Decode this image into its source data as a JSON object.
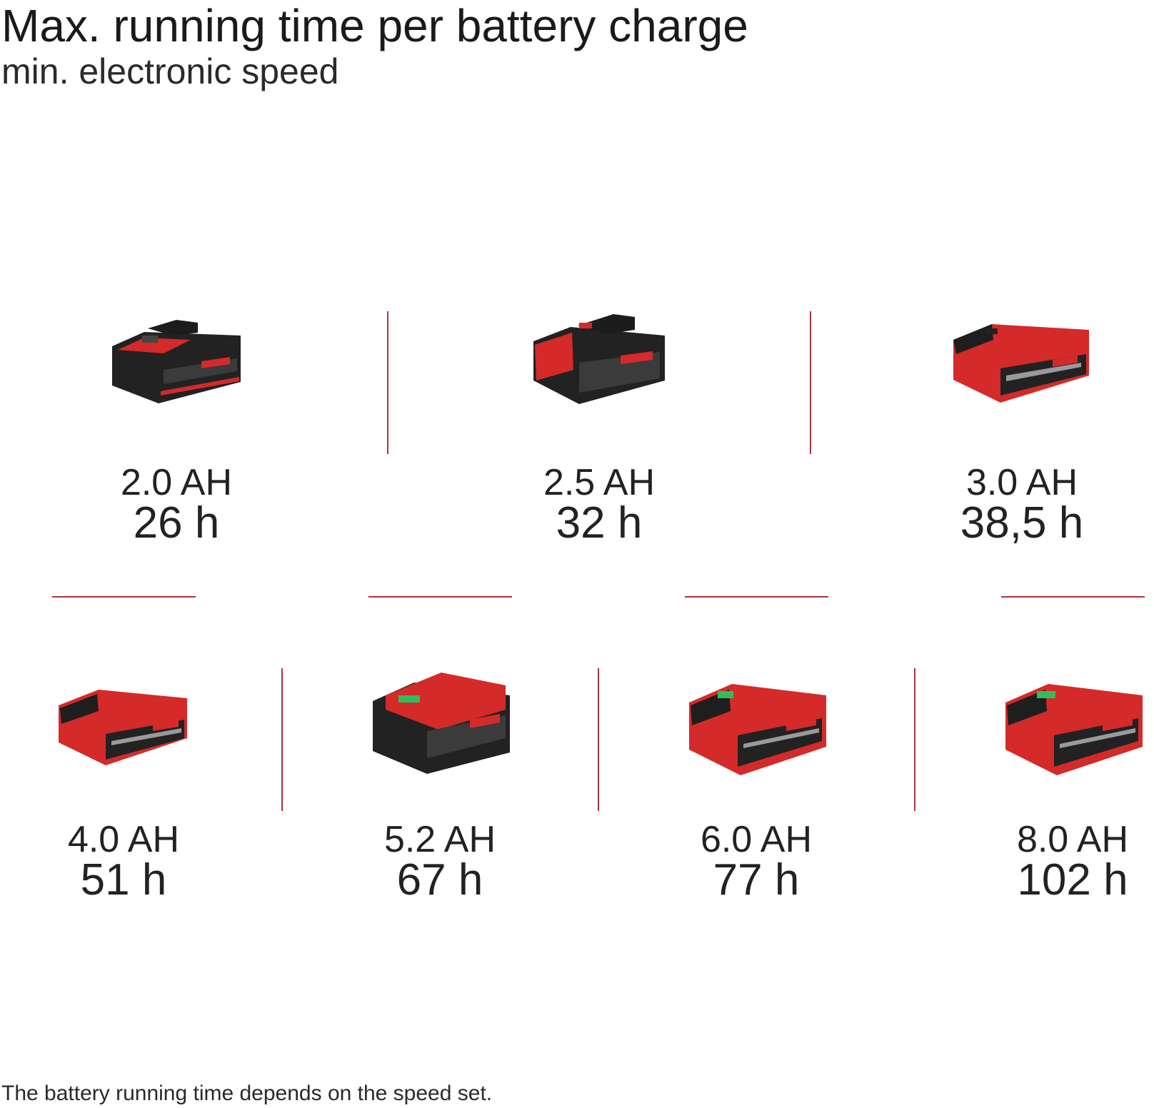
{
  "header": {
    "title": "Max. running time per battery charge",
    "subtitle": "min. electronic speed"
  },
  "colors": {
    "accent": "#a8343c",
    "battery_red": "#d42a2a",
    "battery_black": "#222222"
  },
  "batteries": [
    {
      "capacity": "2.0 AH",
      "runtime": "26 h",
      "style": "black-top-small"
    },
    {
      "capacity": "2.5 AH",
      "runtime": "32 h",
      "style": "black-top-small"
    },
    {
      "capacity": "3.0 AH",
      "runtime": "38,5 h",
      "style": "red-top-small"
    },
    {
      "capacity": "4.0 AH",
      "runtime": "51 h",
      "style": "red-top-small"
    },
    {
      "capacity": "5.2 AH",
      "runtime": "67 h",
      "style": "red-top-large-black-body"
    },
    {
      "capacity": "6.0 AH",
      "runtime": "77 h",
      "style": "red-top-large"
    },
    {
      "capacity": "8.0 AH",
      "runtime": "102 h",
      "style": "red-top-large"
    }
  ],
  "footer": {
    "note": "The battery running time depends on the speed set."
  }
}
